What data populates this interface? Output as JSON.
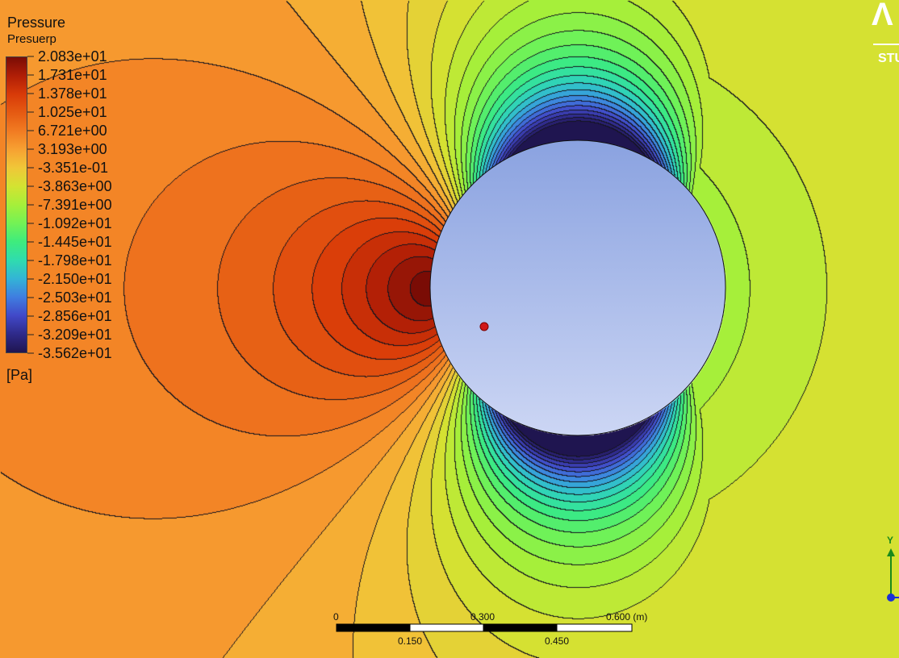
{
  "legend": {
    "title": "Pressure",
    "subtitle": "Presuerp",
    "unit": "[Pa]",
    "labels": [
      "2.083e+01",
      "1.731e+01",
      "1.378e+01",
      "1.025e+01",
      "6.721e+00",
      "3.193e+00",
      "-3.351e-01",
      "-3.863e+00",
      "-7.391e+00",
      "-1.092e+01",
      "-1.445e+01",
      "-1.798e+01",
      "-2.150e+01",
      "-2.503e+01",
      "-2.856e+01",
      "-3.209e+01",
      "-3.562e+01"
    ],
    "colors": [
      "#7a0c05",
      "#b01e06",
      "#d83a08",
      "#e55a12",
      "#f17b22",
      "#f7a132",
      "#f0c738",
      "#d3e332",
      "#a6ef3a",
      "#73f255",
      "#3eec7d",
      "#2fdcae",
      "#33b4d6",
      "#3f7de0",
      "#4149c8",
      "#2f2a8a",
      "#1f1550"
    ]
  },
  "logo": {
    "mark": "Λ",
    "text": "STU"
  },
  "scalebar": {
    "top_labels": [
      "0",
      "0.300",
      "0.600  (m)"
    ],
    "bottom_labels": [
      "0.150",
      "0.450"
    ]
  },
  "triad": {
    "axis_label": "Y",
    "axis_color": "#1a8a1a",
    "origin_color": "#1b2fd6"
  },
  "scene": {
    "cylinder_fill": "#a8b8e6",
    "probe_color": "#d01818"
  }
}
